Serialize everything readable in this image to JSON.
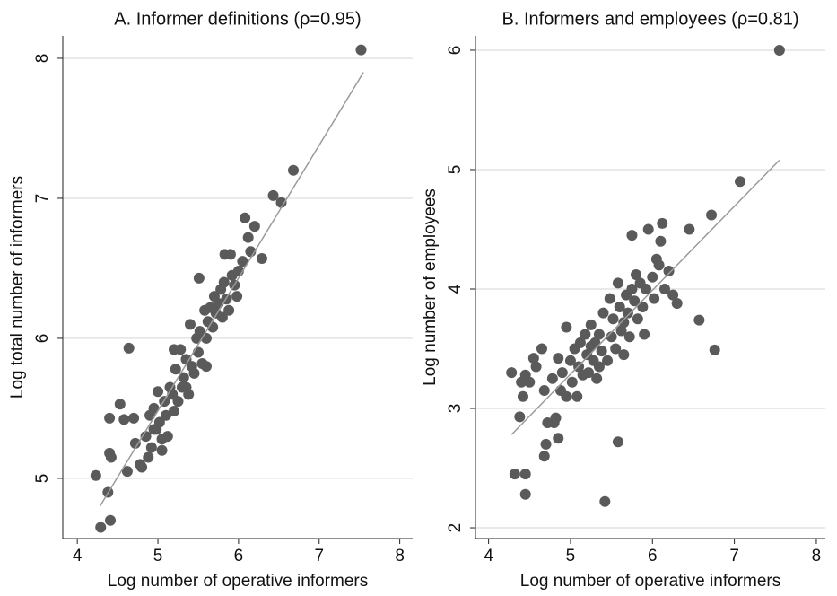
{
  "chart_data": [
    {
      "type": "scatter",
      "title": "A. Informer definitions (ρ=0.95)",
      "x_label": "Log number of operative informers",
      "y_label": "Log total number of informers",
      "xlim": [
        3.82,
        8.16
      ],
      "ylim": [
        4.57,
        8.16
      ],
      "xticks": [
        4,
        5,
        6,
        7,
        8
      ],
      "yticks": [
        5,
        6,
        7,
        8
      ],
      "grid": true,
      "series": [
        {
          "color": "#5a5a5a",
          "x": [
            4.23,
            4.29,
            4.41,
            4.38,
            4.4,
            4.53,
            4.64,
            4.4,
            4.42,
            4.62,
            4.58,
            4.7,
            4.72,
            4.78,
            4.8,
            4.85,
            4.88,
            4.9,
            4.92,
            4.95,
            4.98,
            5.0,
            5.02,
            5.05,
            5.08,
            5.1,
            5.12,
            5.15,
            5.18,
            5.2,
            5.22,
            5.25,
            5.28,
            5.3,
            5.32,
            5.35,
            5.38,
            5.4,
            5.42,
            5.45,
            5.48,
            5.5,
            5.52,
            5.55,
            5.58,
            5.6,
            5.62,
            5.65,
            5.68,
            5.7,
            5.72,
            5.75,
            5.78,
            5.8,
            5.82,
            5.85,
            5.88,
            5.9,
            5.92,
            5.95,
            5.98,
            6.0,
            6.05,
            6.08,
            6.12,
            6.15,
            6.2,
            6.29,
            6.43,
            6.53,
            6.68,
            7.52,
            5.51,
            5.83,
            5.2,
            4.95,
            5.05,
            5.6,
            5.35
          ],
          "values": [
            5.02,
            4.65,
            4.7,
            4.9,
            5.43,
            5.53,
            5.93,
            5.18,
            5.15,
            5.05,
            5.42,
            5.43,
            5.25,
            5.1,
            5.08,
            5.3,
            5.15,
            5.45,
            5.22,
            5.5,
            5.35,
            5.62,
            5.4,
            5.28,
            5.55,
            5.45,
            5.3,
            5.65,
            5.6,
            5.48,
            5.78,
            5.55,
            5.92,
            5.65,
            5.72,
            5.85,
            5.6,
            6.1,
            5.8,
            5.75,
            6.0,
            5.9,
            6.05,
            5.82,
            6.2,
            6.0,
            6.12,
            6.22,
            6.08,
            6.3,
            6.18,
            6.25,
            6.35,
            6.15,
            6.4,
            6.28,
            6.2,
            6.6,
            6.45,
            6.38,
            6.3,
            6.48,
            6.55,
            6.86,
            6.72,
            6.62,
            6.8,
            6.57,
            7.02,
            6.97,
            7.2,
            8.06,
            6.43,
            6.6,
            5.92,
            5.35,
            5.2,
            5.8,
            5.65
          ]
        }
      ],
      "fit": {
        "color": "#9a9a9a",
        "x": [
          4.28,
          7.55
        ],
        "values": [
          4.8,
          7.9
        ]
      }
    },
    {
      "type": "scatter",
      "title": "B. Informers and employees (ρ=0.81)",
      "x_label": "Log number of operative informers",
      "y_label": "Log number of employees",
      "xlim": [
        3.84,
        8.11
      ],
      "ylim": [
        1.91,
        6.12
      ],
      "xticks": [
        4,
        5,
        6,
        7,
        8
      ],
      "yticks": [
        2,
        3,
        4,
        5,
        6
      ],
      "grid": true,
      "series": [
        {
          "color": "#5a5a5a",
          "x": [
            4.28,
            4.32,
            4.45,
            4.45,
            4.38,
            4.42,
            4.45,
            4.4,
            4.5,
            4.55,
            4.58,
            4.65,
            4.68,
            4.68,
            4.7,
            4.72,
            4.8,
            4.82,
            4.85,
            4.78,
            4.85,
            4.88,
            4.9,
            4.95,
            4.95,
            5.0,
            5.02,
            5.05,
            5.08,
            5.1,
            5.12,
            5.15,
            5.18,
            5.2,
            5.22,
            5.25,
            5.28,
            5.3,
            5.32,
            5.35,
            5.38,
            5.4,
            5.42,
            5.45,
            5.48,
            5.5,
            5.52,
            5.55,
            5.58,
            5.58,
            5.6,
            5.62,
            5.65,
            5.68,
            5.7,
            5.72,
            5.75,
            5.75,
            5.78,
            5.8,
            5.82,
            5.85,
            5.88,
            5.9,
            5.92,
            5.95,
            6.0,
            6.02,
            6.05,
            6.08,
            6.1,
            6.12,
            6.15,
            6.2,
            6.25,
            6.3,
            6.45,
            6.57,
            6.72,
            6.76,
            7.07,
            7.55,
            5.35,
            5.65,
            5.25
          ],
          "values": [
            3.3,
            2.45,
            2.45,
            2.28,
            2.93,
            3.1,
            3.28,
            3.22,
            3.22,
            3.42,
            3.35,
            3.5,
            3.15,
            2.6,
            2.7,
            2.88,
            2.88,
            2.92,
            2.75,
            3.25,
            3.42,
            3.15,
            3.3,
            3.68,
            3.1,
            3.4,
            3.22,
            3.5,
            3.1,
            3.35,
            3.55,
            3.28,
            3.62,
            3.45,
            3.3,
            3.7,
            3.4,
            3.55,
            3.25,
            3.62,
            3.48,
            3.8,
            2.22,
            3.4,
            3.92,
            3.6,
            3.75,
            3.5,
            2.72,
            4.05,
            3.85,
            3.65,
            3.72,
            3.95,
            3.8,
            3.6,
            4.0,
            4.45,
            3.9,
            4.12,
            3.75,
            4.05,
            3.85,
            3.62,
            4.0,
            4.5,
            4.1,
            3.92,
            4.25,
            4.2,
            4.4,
            4.55,
            4.0,
            4.15,
            3.95,
            3.88,
            4.5,
            3.74,
            4.62,
            3.49,
            4.9,
            6.0,
            3.35,
            3.45,
            3.52
          ]
        }
      ],
      "fit": {
        "color": "#9a9a9a",
        "x": [
          4.28,
          7.55
        ],
        "values": [
          2.78,
          5.08
        ]
      }
    }
  ]
}
